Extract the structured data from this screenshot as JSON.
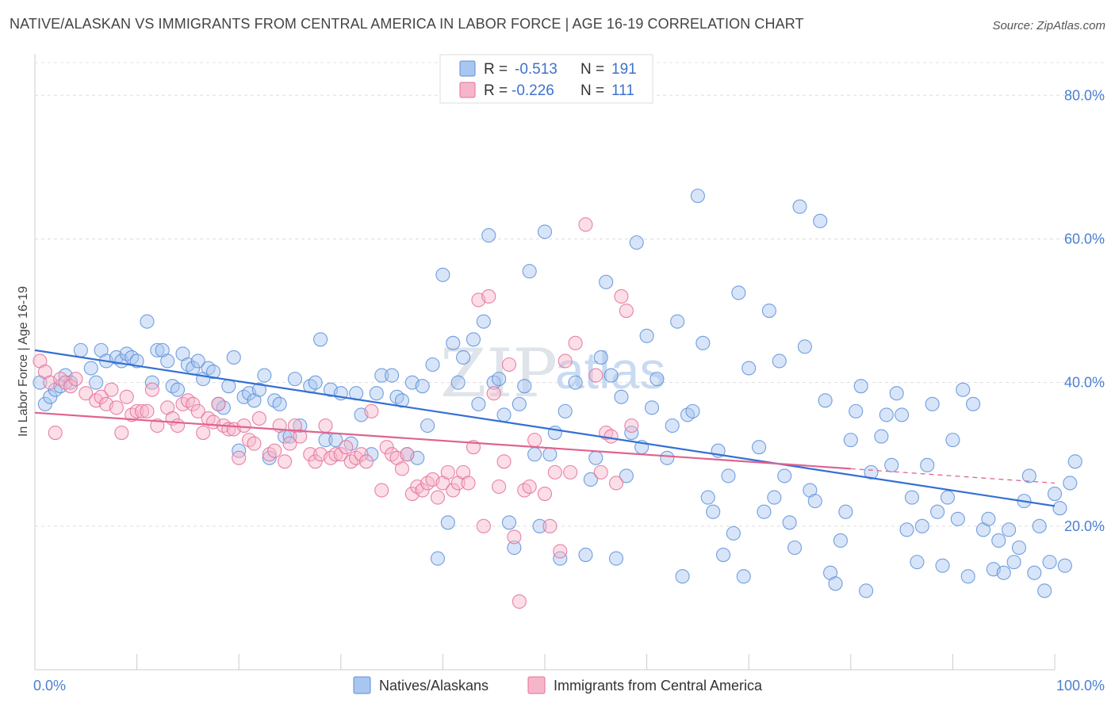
{
  "header": {
    "title": "NATIVE/ALASKAN VS IMMIGRANTS FROM CENTRAL AMERICA IN LABOR FORCE | AGE 16-19 CORRELATION CHART",
    "source": "Source: ZipAtlas.com"
  },
  "watermark": {
    "zip": "ZIP",
    "atlas": "atlas"
  },
  "colors": {
    "blue": "#5b8fdb",
    "blue_fill": "#a9c6f0",
    "pink": "#e46f98",
    "pink_fill": "#f6b6ca",
    "tick": "#4a7fd4"
  },
  "legend": {
    "r_label": "R =",
    "n_label": "N =",
    "rows": [
      {
        "r": "-0.513",
        "n": "191"
      },
      {
        "r": "-0.226",
        "n": "111"
      }
    ]
  },
  "chart_data": {
    "type": "scatter",
    "ylabel": "In Labor Force | Age 16-19",
    "x_tick_labels": [
      "0.0%",
      "100.0%"
    ],
    "y_tick_labels": [
      "80.0%",
      "60.0%",
      "40.0%",
      "20.0%"
    ],
    "y_ticks": [
      80,
      60,
      40,
      20
    ],
    "xlim": [
      0,
      100
    ],
    "ylim": [
      0,
      85
    ],
    "grid": true,
    "legend_position": "top-center",
    "series": [
      {
        "name": "Natives/Alaskans",
        "trend": [
          [
            0,
            44.5
          ],
          [
            100,
            22.8
          ]
        ],
        "points": [
          [
            0.5,
            40.0
          ],
          [
            1,
            37
          ],
          [
            1.5,
            38
          ],
          [
            2,
            39
          ],
          [
            2.5,
            39.5
          ],
          [
            3,
            41
          ],
          [
            3.5,
            40
          ],
          [
            4.5,
            44.5
          ],
          [
            5.5,
            42
          ],
          [
            6,
            40
          ],
          [
            6.5,
            44.5
          ],
          [
            7,
            43
          ],
          [
            8,
            43.5
          ],
          [
            8.5,
            43
          ],
          [
            9,
            44
          ],
          [
            9.5,
            43.5
          ],
          [
            10,
            43
          ],
          [
            11,
            48.5
          ],
          [
            11.5,
            40
          ],
          [
            12,
            44.5
          ],
          [
            12.5,
            44.5
          ],
          [
            13,
            43
          ],
          [
            13.5,
            39.5
          ],
          [
            14,
            39
          ],
          [
            14.5,
            44
          ],
          [
            15,
            42.5
          ],
          [
            15.5,
            42
          ],
          [
            16,
            43
          ],
          [
            16.5,
            40.5
          ],
          [
            17,
            42
          ],
          [
            17.5,
            41.5
          ],
          [
            18,
            37
          ],
          [
            18.5,
            36.5
          ],
          [
            19,
            39.5
          ],
          [
            19.5,
            43.5
          ],
          [
            20,
            30.5
          ],
          [
            20.5,
            38
          ],
          [
            21,
            38.5
          ],
          [
            21.5,
            37.5
          ],
          [
            22,
            39
          ],
          [
            22.5,
            41
          ],
          [
            23,
            29.5
          ],
          [
            23.5,
            37.5
          ],
          [
            24,
            37
          ],
          [
            24.5,
            32.5
          ],
          [
            25,
            32.5
          ],
          [
            25.5,
            40.5
          ],
          [
            26,
            34
          ],
          [
            27,
            39.5
          ],
          [
            27.5,
            40
          ],
          [
            28,
            46
          ],
          [
            28.5,
            32
          ],
          [
            29,
            39
          ],
          [
            29.5,
            32
          ],
          [
            30,
            38.5
          ],
          [
            31,
            31.5
          ],
          [
            31.5,
            38.5
          ],
          [
            32,
            35.5
          ],
          [
            33,
            30
          ],
          [
            33.5,
            38.5
          ],
          [
            34,
            41
          ],
          [
            35,
            41
          ],
          [
            35.5,
            38
          ],
          [
            36,
            37.5
          ],
          [
            36.5,
            30
          ],
          [
            37,
            40
          ],
          [
            37.5,
            29.5
          ],
          [
            38,
            39.5
          ],
          [
            38.5,
            34
          ],
          [
            39,
            42.5
          ],
          [
            39.5,
            15.5
          ],
          [
            40,
            55
          ],
          [
            40.5,
            20.5
          ],
          [
            41,
            45.5
          ],
          [
            41.5,
            40
          ],
          [
            42,
            43.5
          ],
          [
            43,
            46
          ],
          [
            43.5,
            37
          ],
          [
            44,
            48.5
          ],
          [
            44.5,
            60.5
          ],
          [
            45,
            40
          ],
          [
            45.5,
            40.5
          ],
          [
            46,
            35.5
          ],
          [
            46.5,
            20.5
          ],
          [
            47,
            17
          ],
          [
            47.5,
            37
          ],
          [
            48,
            39.5
          ],
          [
            48.5,
            55.5
          ],
          [
            49,
            30
          ],
          [
            49.5,
            20
          ],
          [
            50,
            61
          ],
          [
            50.5,
            30
          ],
          [
            51,
            33
          ],
          [
            51.5,
            15.5
          ],
          [
            52,
            36
          ],
          [
            53,
            40
          ],
          [
            54,
            16
          ],
          [
            54.5,
            26.5
          ],
          [
            55,
            29.5
          ],
          [
            55.5,
            43.5
          ],
          [
            56,
            54
          ],
          [
            56.5,
            41
          ],
          [
            57,
            15.5
          ],
          [
            57.5,
            38
          ],
          [
            58,
            27
          ],
          [
            58.5,
            33
          ],
          [
            59,
            59.5
          ],
          [
            59.5,
            31
          ],
          [
            60,
            46.5
          ],
          [
            60.5,
            36.5
          ],
          [
            61,
            40.5
          ],
          [
            62,
            29.5
          ],
          [
            62.5,
            34
          ],
          [
            63,
            48.5
          ],
          [
            63.5,
            13
          ],
          [
            64,
            35.5
          ],
          [
            64.5,
            36
          ],
          [
            65,
            66
          ],
          [
            65.5,
            45.5
          ],
          [
            66,
            24
          ],
          [
            66.5,
            22
          ],
          [
            67,
            30.5
          ],
          [
            67.5,
            16
          ],
          [
            68,
            27
          ],
          [
            68.5,
            19
          ],
          [
            69,
            52.5
          ],
          [
            69.5,
            13
          ],
          [
            70,
            42
          ],
          [
            71,
            31
          ],
          [
            71.5,
            22
          ],
          [
            72,
            50
          ],
          [
            72.5,
            24
          ],
          [
            73,
            43
          ],
          [
            73.5,
            27
          ],
          [
            74,
            20.5
          ],
          [
            74.5,
            17
          ],
          [
            75,
            64.5
          ],
          [
            75.5,
            45
          ],
          [
            76,
            25
          ],
          [
            76.5,
            23.5
          ],
          [
            77,
            62.5
          ],
          [
            77.5,
            37.5
          ],
          [
            78,
            13.5
          ],
          [
            78.5,
            12
          ],
          [
            79,
            18
          ],
          [
            79.5,
            22
          ],
          [
            80,
            32
          ],
          [
            80.5,
            36
          ],
          [
            81,
            39.5
          ],
          [
            81.5,
            11
          ],
          [
            82,
            27.5
          ],
          [
            83,
            32.5
          ],
          [
            83.5,
            35.5
          ],
          [
            84,
            28.5
          ],
          [
            84.5,
            38.5
          ],
          [
            85,
            35.5
          ],
          [
            85.5,
            19.5
          ],
          [
            86,
            24
          ],
          [
            86.5,
            15
          ],
          [
            87,
            20
          ],
          [
            87.5,
            28.5
          ],
          [
            88,
            37
          ],
          [
            88.5,
            22
          ],
          [
            89,
            14.5
          ],
          [
            89.5,
            24
          ],
          [
            90,
            32
          ],
          [
            90.5,
            21
          ],
          [
            91,
            39
          ],
          [
            91.5,
            13
          ],
          [
            92,
            37
          ],
          [
            93,
            19.5
          ],
          [
            93.5,
            21
          ],
          [
            94,
            14
          ],
          [
            94.5,
            18
          ],
          [
            95,
            13.5
          ],
          [
            95.5,
            19.5
          ],
          [
            96,
            15
          ],
          [
            96.5,
            17
          ],
          [
            97,
            23.5
          ],
          [
            97.5,
            27
          ],
          [
            98,
            13.5
          ],
          [
            98.5,
            20
          ],
          [
            99,
            11
          ],
          [
            99.5,
            15
          ],
          [
            100,
            24.5
          ],
          [
            100.5,
            22.5
          ],
          [
            101,
            14.5
          ],
          [
            101.5,
            26
          ],
          [
            102,
            29
          ]
        ]
      },
      {
        "name": "Immigrants from Central America",
        "trend": [
          [
            0,
            35.8
          ],
          [
            80,
            28.0
          ]
        ],
        "trend_dashed": [
          [
            80,
            28.0
          ],
          [
            100,
            26.0
          ]
        ],
        "points": [
          [
            0.5,
            43
          ],
          [
            1,
            41.5
          ],
          [
            1.5,
            40
          ],
          [
            2,
            33
          ],
          [
            2.5,
            40.5
          ],
          [
            3,
            40
          ],
          [
            3.5,
            39.5
          ],
          [
            4,
            40.5
          ],
          [
            5,
            38.5
          ],
          [
            6,
            37.5
          ],
          [
            6.5,
            38
          ],
          [
            7,
            37
          ],
          [
            7.5,
            39
          ],
          [
            8,
            36.5
          ],
          [
            8.5,
            33
          ],
          [
            9,
            38
          ],
          [
            9.5,
            35.5
          ],
          [
            10,
            36
          ],
          [
            10.5,
            36
          ],
          [
            11,
            36
          ],
          [
            11.5,
            39
          ],
          [
            12,
            34
          ],
          [
            13,
            36.5
          ],
          [
            13.5,
            35
          ],
          [
            14,
            34
          ],
          [
            14.5,
            37
          ],
          [
            15,
            37.5
          ],
          [
            15.5,
            37
          ],
          [
            16,
            36
          ],
          [
            16.5,
            33
          ],
          [
            17,
            35
          ],
          [
            17.5,
            34.5
          ],
          [
            18,
            37
          ],
          [
            18.5,
            34
          ],
          [
            19,
            33.5
          ],
          [
            19.5,
            33.5
          ],
          [
            20,
            29.5
          ],
          [
            20.5,
            34
          ],
          [
            21,
            32
          ],
          [
            21.5,
            31.5
          ],
          [
            22,
            35
          ],
          [
            23,
            30
          ],
          [
            23.5,
            30.5
          ],
          [
            24,
            34
          ],
          [
            24.5,
            29
          ],
          [
            25,
            31.5
          ],
          [
            25.5,
            34
          ],
          [
            26,
            32.5
          ],
          [
            27,
            30
          ],
          [
            27.5,
            29
          ],
          [
            28,
            30
          ],
          [
            28.5,
            34
          ],
          [
            29,
            29.5
          ],
          [
            29.5,
            30
          ],
          [
            30,
            30
          ],
          [
            30.5,
            31
          ],
          [
            31,
            29
          ],
          [
            31.5,
            29.5
          ],
          [
            32,
            30
          ],
          [
            32.5,
            29
          ],
          [
            33,
            36
          ],
          [
            34,
            25
          ],
          [
            34.5,
            31
          ],
          [
            35,
            30
          ],
          [
            35.5,
            29.5
          ],
          [
            36,
            28
          ],
          [
            36.5,
            30
          ],
          [
            37,
            24.5
          ],
          [
            37.5,
            25.5
          ],
          [
            38,
            25
          ],
          [
            38.5,
            26
          ],
          [
            39,
            26.5
          ],
          [
            39.5,
            24
          ],
          [
            40,
            26
          ],
          [
            40.5,
            27.5
          ],
          [
            41,
            25
          ],
          [
            41.5,
            26
          ],
          [
            42,
            27.5
          ],
          [
            42.5,
            26
          ],
          [
            43,
            31
          ],
          [
            43.5,
            51.5
          ],
          [
            44,
            20
          ],
          [
            44.5,
            52
          ],
          [
            45,
            38.5
          ],
          [
            45.5,
            25.5
          ],
          [
            46,
            29
          ],
          [
            46.5,
            42.5
          ],
          [
            47,
            18.5
          ],
          [
            47.5,
            9.5
          ],
          [
            48,
            25
          ],
          [
            48.5,
            25.5
          ],
          [
            49,
            32
          ],
          [
            50,
            24.5
          ],
          [
            50.5,
            20
          ],
          [
            51,
            27.5
          ],
          [
            51.5,
            16.5
          ],
          [
            52,
            43
          ],
          [
            52.5,
            27.5
          ],
          [
            53,
            45.5
          ],
          [
            54,
            62
          ],
          [
            55,
            41
          ],
          [
            55.5,
            27.5
          ],
          [
            56,
            33
          ],
          [
            56.5,
            32.5
          ],
          [
            57,
            26
          ],
          [
            57.5,
            52
          ],
          [
            58,
            50
          ],
          [
            58.5,
            34
          ]
        ]
      }
    ]
  },
  "bottom_legend": [
    "Natives/Alaskans",
    "Immigrants from Central America"
  ]
}
